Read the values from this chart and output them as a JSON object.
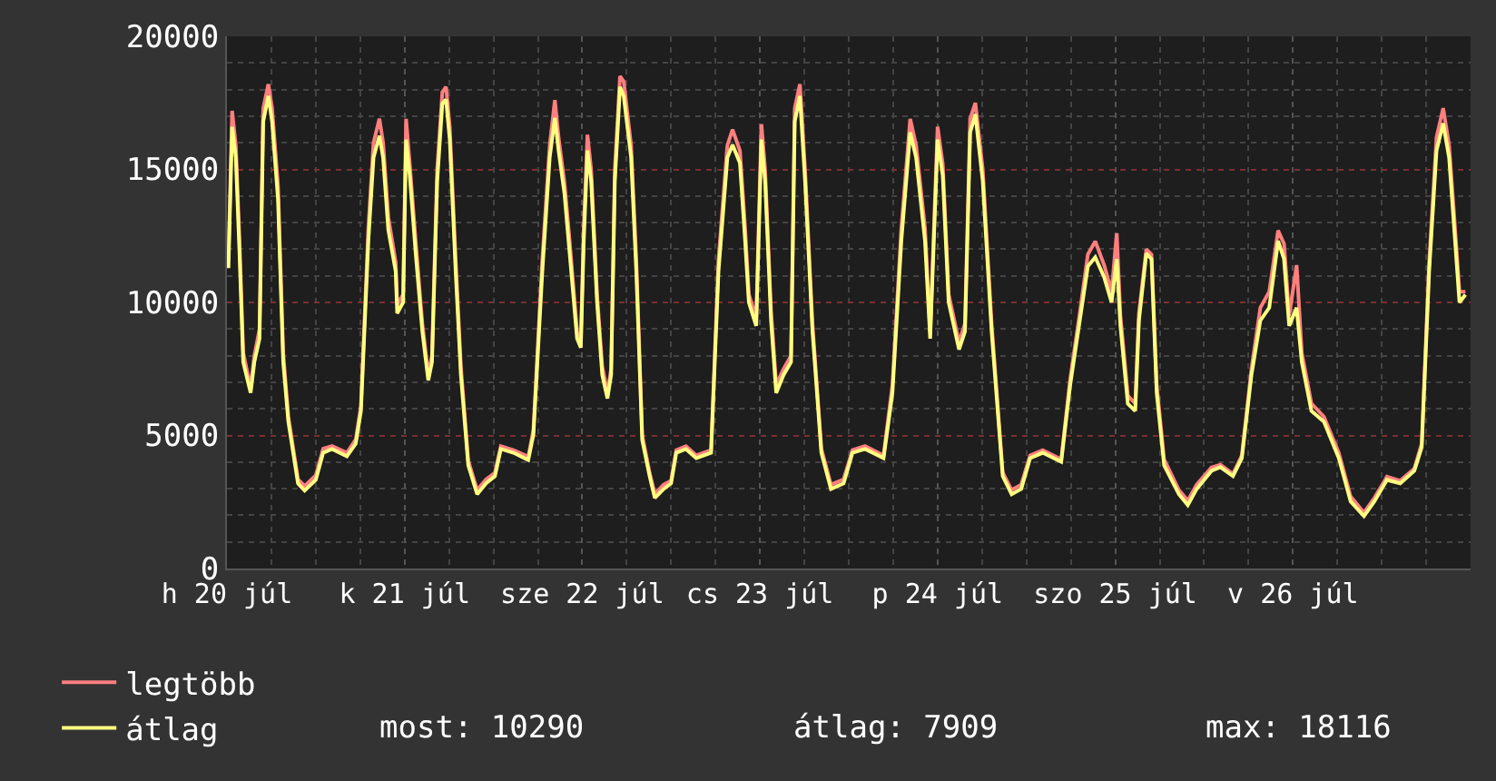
{
  "chart_data": {
    "type": "line",
    "xlim": [
      "--07-20T00:00",
      "--07-27T00:00"
    ],
    "xticks": [
      {
        "value": "--07-20",
        "label": "h 20 júl"
      },
      {
        "value": "--07-21",
        "label": "k 21 júl"
      },
      {
        "value": "--07-22",
        "label": "sze 22 júl"
      },
      {
        "value": "--07-23",
        "label": "cs 23 júl"
      },
      {
        "value": "--07-24",
        "label": "p 24 júl"
      },
      {
        "value": "--07-25",
        "label": "szo 25 júl"
      },
      {
        "value": "--07-26",
        "label": "v 26 júl"
      }
    ],
    "ylim": [
      0,
      20000
    ],
    "yticks": [
      0,
      5000,
      10000,
      15000,
      20000
    ],
    "grid": true,
    "legend": "bottom left",
    "annotations": [
      "most: 10290",
      "átlag: 7909",
      "max: 18116"
    ],
    "x": [
      "--07-20T00:12",
      "--07-20T00:42",
      "--07-20T01:12",
      "--07-20T01:42",
      "--07-20T02:12",
      "--07-20T03:12",
      "--07-20T03:42",
      "--07-20T04:24",
      "--07-20T04:54",
      "--07-20T05:36",
      "--07-20T06:06",
      "--07-20T06:54",
      "--07-20T07:36",
      "--07-20T08:18",
      "--07-20T09:36",
      "--07-20T10:30",
      "--07-20T12:00",
      "--07-20T13:00",
      "--07-20T14:12",
      "--07-20T16:12",
      "--07-20T17:24",
      "--07-20T18:06",
      "--07-20T19:06",
      "--07-20T19:48",
      "--07-20T20:36",
      "--07-20T21:06",
      "--07-20T21:48",
      "--07-20T22:48",
      "--07-20T23:00",
      "--07-20T23:48",
      "--07-21T00:12",
      "--07-21T00:42",
      "--07-21T01:30",
      "--07-21T02:24",
      "--07-21T03:12",
      "--07-21T03:42",
      "--07-21T04:24",
      "--07-21T05:06",
      "--07-21T05:36",
      "--07-21T06:06",
      "--07-21T06:54",
      "--07-21T07:36",
      "--07-21T08:36",
      "--07-21T09:48",
      "--07-21T11:00",
      "--07-21T12:12",
      "--07-21T13:00",
      "--07-21T14:42",
      "--07-21T16:42",
      "--07-21T17:24",
      "--07-21T18:36",
      "--07-21T19:36",
      "--07-21T20:18",
      "--07-21T20:48",
      "--07-21T21:36",
      "--07-21T22:18",
      "--07-21T23:18",
      "--07-21T23:48",
      "--07-22T00:12",
      "--07-22T00:42",
      "--07-22T01:12",
      "--07-22T02:00",
      "--07-22T02:42",
      "--07-22T03:24",
      "--07-22T03:54",
      "--07-22T04:24",
      "--07-22T05:06",
      "--07-22T05:36",
      "--07-22T06:36",
      "--07-22T07:18",
      "--07-22T08:06",
      "--07-22T09:06",
      "--07-22T09:48",
      "--07-22T11:00",
      "--07-22T12:00",
      "--07-22T12:42",
      "--07-22T14:00",
      "--07-22T15:24",
      "--07-22T17:24",
      "--07-22T18:24",
      "--07-22T19:36",
      "--07-22T20:18",
      "--07-22T21:18",
      "--07-22T22:00",
      "--07-22T22:30",
      "--07-22T23:30",
      "--07-23T00:12",
      "--07-23T00:42",
      "--07-23T01:30",
      "--07-23T02:12",
      "--07-23T03:12",
      "--07-23T04:12",
      "--07-23T04:42",
      "--07-23T05:24",
      "--07-23T06:06",
      "--07-23T07:06",
      "--07-23T08:18",
      "--07-23T09:36",
      "--07-23T11:18",
      "--07-23T12:30",
      "--07-23T14:12",
      "--07-23T16:42",
      "--07-23T17:54",
      "--07-23T19:06",
      "--07-23T20:18",
      "--07-23T21:06",
      "--07-23T22:18",
      "--07-23T23:00",
      "--07-24T00:00",
      "--07-24T00:42",
      "--07-24T01:30",
      "--07-24T02:54",
      "--07-24T03:42",
      "--07-24T04:24",
      "--07-24T05:06",
      "--07-24T06:06",
      "--07-24T07:18",
      "--07-24T08:48",
      "--07-24T10:00",
      "--07-24T11:18",
      "--07-24T12:30",
      "--07-24T14:12",
      "--07-24T16:42",
      "--07-24T17:54",
      "--07-24T19:06",
      "--07-24T20:18",
      "--07-24T21:18",
      "--07-24T22:30",
      "--07-24T23:30",
      "--07-25T00:12",
      "--07-25T00:42",
      "--07-25T01:42",
      "--07-25T02:42",
      "--07-25T03:12",
      "--07-25T04:12",
      "--07-25T04:54",
      "--07-25T05:36",
      "--07-25T06:36",
      "--07-25T08:36",
      "--07-25T09:48",
      "--07-25T11:00",
      "--07-25T13:00",
      "--07-25T14:12",
      "--07-25T15:54",
      "--07-25T17:06",
      "--07-25T18:24",
      "--07-25T19:36",
      "--07-25T20:48",
      "--07-25T22:00",
      "--07-25T22:48",
      "--07-25T23:30",
      "--07-26T00:30",
      "--07-26T01:12",
      "--07-26T02:30",
      "--07-26T04:12",
      "--07-26T06:12",
      "--07-26T07:48",
      "--07-26T09:36",
      "--07-26T11:00",
      "--07-26T12:42",
      "--07-26T14:30",
      "--07-26T16:24",
      "--07-26T17:24",
      "--07-26T18:24",
      "--07-26T19:24",
      "--07-26T20:18",
      "--07-26T21:06",
      "--07-26T21:48",
      "--07-26T22:30",
      "--07-26T23:18"
    ],
    "series": [
      {
        "name": "legtöbb",
        "color": "#ff7f7f",
        "values": [
          11600,
          17200,
          15900,
          12300,
          8100,
          6800,
          8000,
          9000,
          17300,
          18200,
          17300,
          14400,
          8100,
          5700,
          3350,
          3100,
          3500,
          4500,
          4600,
          4350,
          4850,
          6100,
          12800,
          16000,
          16900,
          16000,
          13200,
          11500,
          9900,
          10300,
          16900,
          15200,
          12300,
          9200,
          7300,
          8000,
          15000,
          17900,
          18100,
          16600,
          11600,
          7600,
          4050,
          2950,
          3350,
          3600,
          4600,
          4450,
          4200,
          5200,
          11600,
          15900,
          17600,
          16200,
          14500,
          12300,
          8900,
          8500,
          12800,
          16300,
          15000,
          10300,
          7600,
          6600,
          7500,
          15000,
          18500,
          18300,
          15900,
          11600,
          5000,
          3600,
          2800,
          3150,
          3300,
          4450,
          4600,
          4250,
          4450,
          11600,
          15900,
          16500,
          15700,
          12800,
          10300,
          9400,
          16700,
          15000,
          9700,
          6900,
          7500,
          8000,
          17300,
          18200,
          15000,
          9200,
          4500,
          3150,
          3350,
          4450,
          4600,
          4250,
          6900,
          12800,
          16900,
          15900,
          12800,
          8900,
          16600,
          15200,
          10300,
          8500,
          9200,
          16900,
          17500,
          15000,
          9200,
          3600,
          2950,
          3150,
          4250,
          4450,
          4100,
          7100,
          9400,
          11800,
          12300,
          11400,
          10400,
          12600,
          9500,
          6500,
          6200,
          9600,
          12000,
          11800,
          6900,
          4100,
          2950,
          2550,
          3150,
          3800,
          3900,
          3550,
          4250,
          7500,
          9800,
          10400,
          12700,
          12200,
          9500,
          11400,
          8100,
          6200,
          5700,
          4350,
          2700,
          2100,
          2650,
          3450,
          3300,
          3750,
          4700,
          11500,
          16200,
          17300,
          15900,
          13200,
          10400,
          10400
        ]
      },
      {
        "name": "átlag",
        "color": "#ffff80",
        "values": [
          11290,
          16600,
          15440,
          11840,
          7760,
          6600,
          7760,
          8640,
          16800,
          17760,
          16800,
          13880,
          7760,
          5510,
          3200,
          2930,
          3330,
          4350,
          4490,
          4220,
          4690,
          5920,
          12310,
          15440,
          16260,
          15440,
          12720,
          11160,
          9590,
          10000,
          16120,
          14760,
          11840,
          8910,
          7070,
          7760,
          14560,
          17480,
          17620,
          16120,
          11160,
          7280,
          3880,
          2790,
          3200,
          3470,
          4490,
          4350,
          4080,
          5030,
          11160,
          15440,
          16940,
          15710,
          14080,
          11840,
          8640,
          8300,
          12310,
          15710,
          14560,
          10000,
          7280,
          6390,
          7280,
          14560,
          18100,
          17760,
          15440,
          11160,
          4830,
          3470,
          2650,
          2990,
          3200,
          4350,
          4490,
          4150,
          4350,
          11160,
          15440,
          15920,
          15240,
          12310,
          10000,
          9120,
          16120,
          14560,
          9320,
          6600,
          7280,
          7760,
          16800,
          17760,
          14560,
          8910,
          4350,
          2990,
          3200,
          4350,
          4490,
          4150,
          6600,
          12310,
          16390,
          15440,
          12310,
          8640,
          16120,
          14760,
          10000,
          8230,
          8910,
          16390,
          17070,
          14560,
          8910,
          3470,
          2790,
          2990,
          4150,
          4350,
          4010,
          6870,
          9120,
          11360,
          11700,
          10950,
          10000,
          11630,
          9120,
          6190,
          5920,
          9320,
          11840,
          11630,
          6600,
          3880,
          2790,
          2380,
          2990,
          3670,
          3810,
          3470,
          4150,
          7280,
          9320,
          9800,
          12310,
          11630,
          9120,
          9800,
          7760,
          5920,
          5510,
          4150,
          2520,
          1970,
          2520,
          3330,
          3200,
          3670,
          4560,
          11160,
          15710,
          16730,
          15440,
          12720,
          10000,
          10290
        ]
      }
    ]
  }
}
